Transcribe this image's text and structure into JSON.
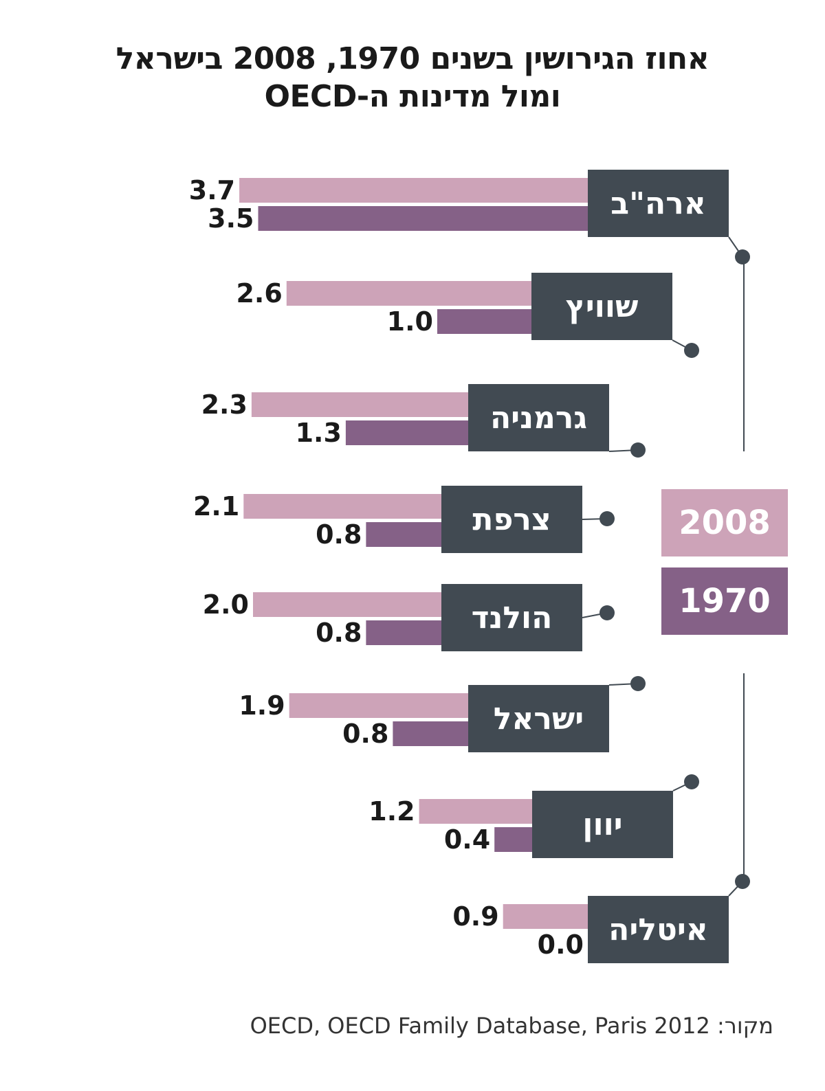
{
  "title_line1": "אחוז הגירושין בשנים 1970, 2008 בישראל",
  "title_line2": "ומול מדינות ה-OECD",
  "source": "OECD, OECD Family Database, Paris 2012 :מקור",
  "colors": {
    "series_2008": "#cda3b8",
    "series_1970": "#856187",
    "label_box": "#414a52",
    "connector": "#414a52"
  },
  "chart_data": {
    "type": "bar",
    "orientation": "horizontal",
    "categories": [
      "ארה\"ב",
      "שוויץ",
      "גרמניה",
      "צרפת",
      "הולנד",
      "ישראל",
      "יוון",
      "איטליה"
    ],
    "series": [
      {
        "name": "2008",
        "values": [
          3.7,
          2.6,
          2.3,
          2.1,
          2.0,
          1.9,
          1.2,
          0.9
        ]
      },
      {
        "name": "1970",
        "values": [
          3.5,
          1.0,
          1.3,
          0.8,
          0.8,
          0.8,
          0.4,
          0.0
        ]
      }
    ],
    "value_labels_2008": [
      "3.7",
      "2.6",
      "2.3",
      "2.1",
      "2.0",
      "1.9",
      "1.2",
      "0.9"
    ],
    "value_labels_1970": [
      "3.5",
      "1.0",
      "1.3",
      "0.8",
      "0.8",
      "0.8",
      "0.4",
      "0.0"
    ],
    "legend": [
      {
        "label": "2008"
      },
      {
        "label": "1970"
      }
    ],
    "legend_placement": "right",
    "grid": false
  }
}
